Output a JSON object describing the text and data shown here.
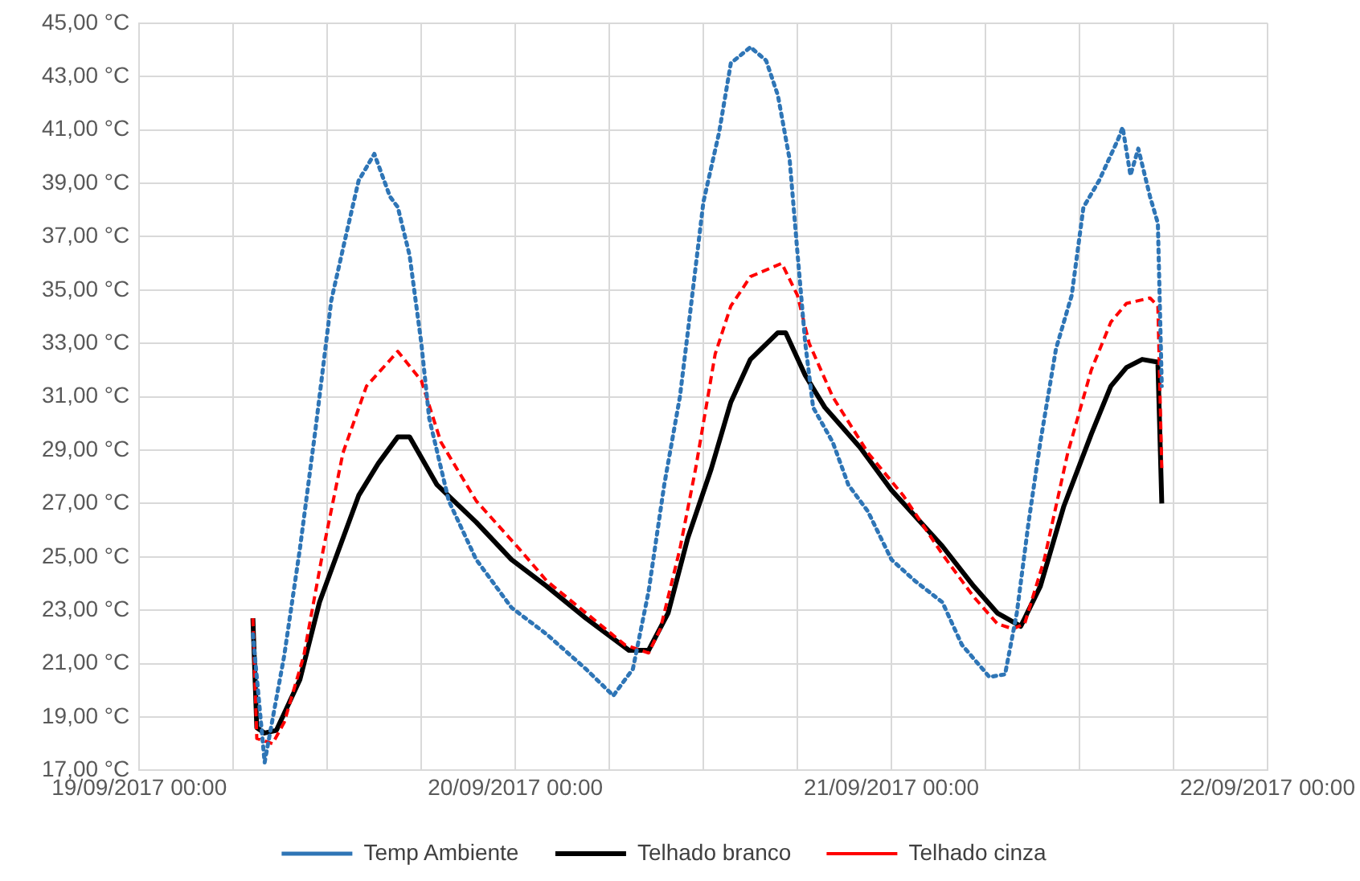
{
  "chart_data": {
    "type": "line",
    "legend": "bottom",
    "grid": true,
    "marker": "none",
    "ylim": [
      17,
      45
    ],
    "yticks": [
      {
        "value": 17,
        "label": "17,00 °C"
      },
      {
        "value": 19,
        "label": "19,00 °C"
      },
      {
        "value": 21,
        "label": "21,00 °C"
      },
      {
        "value": 23,
        "label": "23,00 °C"
      },
      {
        "value": 25,
        "label": "25,00 °C"
      },
      {
        "value": 27,
        "label": "27,00 °C"
      },
      {
        "value": 29,
        "label": "29,00 °C"
      },
      {
        "value": 31,
        "label": "31,00 °C"
      },
      {
        "value": 33,
        "label": "33,00 °C"
      },
      {
        "value": 35,
        "label": "35,00 °C"
      },
      {
        "value": 37,
        "label": "37,00 °C"
      },
      {
        "value": 39,
        "label": "39,00 °C"
      },
      {
        "value": 41,
        "label": "41,00 °C"
      },
      {
        "value": 43,
        "label": "43,00 °C"
      },
      {
        "value": 45,
        "label": "45,00 °C"
      }
    ],
    "xlim": [
      "2017-09-19T00:00",
      "2017-09-22T00:00"
    ],
    "xticks": [
      {
        "value": "2017-09-19T00:00",
        "label": "19/09/2017 00:00"
      },
      {
        "value": "2017-09-19T06:00",
        "label": null
      },
      {
        "value": "2017-09-19T12:00",
        "label": null
      },
      {
        "value": "2017-09-19T18:00",
        "label": null
      },
      {
        "value": "2017-09-20T00:00",
        "label": "20/09/2017 00:00"
      },
      {
        "value": "2017-09-20T06:00",
        "label": null
      },
      {
        "value": "2017-09-20T12:00",
        "label": null
      },
      {
        "value": "2017-09-20T18:00",
        "label": null
      },
      {
        "value": "2017-09-21T00:00",
        "label": "21/09/2017 00:00"
      },
      {
        "value": "2017-09-21T06:00",
        "label": null
      },
      {
        "value": "2017-09-21T12:00",
        "label": null
      },
      {
        "value": "2017-09-21T18:00",
        "label": null
      },
      {
        "value": "2017-09-22T00:00",
        "label": "22/09/2017 00:00"
      }
    ],
    "series": [
      {
        "name": "Temp Ambiente",
        "color": "#2e75b6",
        "line_style": "dotted",
        "x": [
          "2017-09-19T07:15",
          "2017-09-19T08:00",
          "2017-09-19T09:15",
          "2017-09-19T10:15",
          "2017-09-19T11:15",
          "2017-09-19T12:15",
          "2017-09-19T13:15",
          "2017-09-19T14:00",
          "2017-09-19T15:00",
          "2017-09-19T16:00",
          "2017-09-19T16:30",
          "2017-09-19T17:15",
          "2017-09-19T18:00",
          "2017-09-19T18:30",
          "2017-09-19T19:45",
          "2017-09-19T21:30",
          "2017-09-19T23:45",
          "2017-09-20T02:00",
          "2017-09-20T04:30",
          "2017-09-20T06:15",
          "2017-09-20T07:30",
          "2017-09-20T08:30",
          "2017-09-20T09:30",
          "2017-09-20T10:30",
          "2017-09-20T11:00",
          "2017-09-20T12:00",
          "2017-09-20T13:00",
          "2017-09-20T13:45",
          "2017-09-20T15:00",
          "2017-09-20T16:00",
          "2017-09-20T16:45",
          "2017-09-20T17:30",
          "2017-09-20T18:00",
          "2017-09-20T18:30",
          "2017-09-20T19:00",
          "2017-09-20T20:15",
          "2017-09-20T21:15",
          "2017-09-20T22:30",
          "2017-09-21T00:00",
          "2017-09-21T01:30",
          "2017-09-21T03:15",
          "2017-09-21T04:30",
          "2017-09-21T06:15",
          "2017-09-21T07:15",
          "2017-09-21T08:00",
          "2017-09-21T08:45",
          "2017-09-21T09:30",
          "2017-09-21T10:30",
          "2017-09-21T11:30",
          "2017-09-21T12:15",
          "2017-09-21T13:15",
          "2017-09-21T14:30",
          "2017-09-21T14:45",
          "2017-09-21T15:15",
          "2017-09-21T15:45",
          "2017-09-21T16:30",
          "2017-09-21T17:00",
          "2017-09-21T17:15"
        ],
        "values": [
          22.1,
          17.3,
          21.3,
          25.3,
          29.8,
          34.6,
          37.2,
          39.1,
          40.1,
          38.5,
          38.1,
          36.3,
          33.0,
          30.2,
          27.1,
          24.9,
          23.1,
          22.1,
          20.8,
          19.8,
          20.8,
          23.7,
          27.7,
          31.0,
          33.4,
          38.3,
          40.9,
          43.5,
          44.1,
          43.6,
          42.3,
          39.9,
          36.4,
          33.0,
          30.6,
          29.3,
          27.7,
          26.7,
          24.9,
          24.1,
          23.3,
          21.7,
          20.5,
          20.6,
          22.9,
          26.3,
          29.3,
          32.8,
          34.8,
          38.1,
          39.1,
          40.7,
          41.1,
          39.3,
          40.3,
          38.5,
          37.5,
          31.4
        ]
      },
      {
        "name": "Telhado branco",
        "color": "#000000",
        "line_style": "solid",
        "x": [
          "2017-09-19T07:15",
          "2017-09-19T07:30",
          "2017-09-19T08:00",
          "2017-09-19T08:45",
          "2017-09-19T10:15",
          "2017-09-19T11:30",
          "2017-09-19T12:45",
          "2017-09-19T14:00",
          "2017-09-19T15:15",
          "2017-09-19T16:30",
          "2017-09-19T17:15",
          "2017-09-19T19:00",
          "2017-09-19T21:30",
          "2017-09-19T23:45",
          "2017-09-20T02:00",
          "2017-09-20T04:30",
          "2017-09-20T07:15",
          "2017-09-20T08:30",
          "2017-09-20T09:45",
          "2017-09-20T11:00",
          "2017-09-20T12:30",
          "2017-09-20T13:45",
          "2017-09-20T15:00",
          "2017-09-20T16:45",
          "2017-09-20T17:15",
          "2017-09-20T18:30",
          "2017-09-20T19:45",
          "2017-09-20T22:00",
          "2017-09-21T00:00",
          "2017-09-21T03:15",
          "2017-09-21T05:15",
          "2017-09-21T06:45",
          "2017-09-21T08:15",
          "2017-09-21T09:30",
          "2017-09-21T11:00",
          "2017-09-21T12:45",
          "2017-09-21T14:00",
          "2017-09-21T15:00",
          "2017-09-21T16:00",
          "2017-09-21T17:00",
          "2017-09-21T17:15"
        ],
        "values": [
          22.7,
          18.6,
          18.4,
          18.5,
          20.4,
          23.3,
          25.3,
          27.3,
          28.5,
          29.5,
          29.5,
          27.7,
          26.3,
          24.9,
          23.9,
          22.7,
          21.5,
          21.5,
          22.9,
          25.7,
          28.3,
          30.8,
          32.4,
          33.4,
          33.4,
          31.8,
          30.6,
          29.1,
          27.5,
          25.4,
          23.9,
          22.9,
          22.4,
          23.9,
          26.9,
          29.6,
          31.4,
          32.1,
          32.4,
          32.3,
          27.0
        ]
      },
      {
        "name": "Telhado cinza",
        "color": "#ff0000",
        "line_style": "dashed",
        "x": [
          "2017-09-19T07:15",
          "2017-09-19T07:30",
          "2017-09-19T08:30",
          "2017-09-19T09:15",
          "2017-09-19T10:30",
          "2017-09-19T11:45",
          "2017-09-19T13:00",
          "2017-09-19T14:30",
          "2017-09-19T16:30",
          "2017-09-19T18:00",
          "2017-09-19T19:15",
          "2017-09-19T21:30",
          "2017-09-20T00:15",
          "2017-09-20T02:00",
          "2017-09-20T04:30",
          "2017-09-20T07:00",
          "2017-09-20T08:30",
          "2017-09-20T09:15",
          "2017-09-20T10:30",
          "2017-09-20T11:30",
          "2017-09-20T12:45",
          "2017-09-20T13:45",
          "2017-09-20T15:00",
          "2017-09-20T17:00",
          "2017-09-20T18:00",
          "2017-09-20T18:45",
          "2017-09-20T20:15",
          "2017-09-20T22:30",
          "2017-09-21T00:45",
          "2017-09-21T03:15",
          "2017-09-21T05:15",
          "2017-09-21T06:45",
          "2017-09-21T07:45",
          "2017-09-21T08:30",
          "2017-09-21T09:45",
          "2017-09-21T11:15",
          "2017-09-21T12:45",
          "2017-09-21T14:00",
          "2017-09-21T15:00",
          "2017-09-21T16:30",
          "2017-09-21T17:00",
          "2017-09-21T17:15"
        ],
        "values": [
          22.7,
          18.2,
          18.0,
          18.8,
          21.3,
          25.3,
          28.9,
          31.4,
          32.7,
          31.6,
          29.3,
          27.1,
          25.3,
          24.1,
          22.9,
          21.7,
          21.4,
          22.3,
          25.3,
          28.3,
          32.6,
          34.4,
          35.5,
          36.0,
          34.8,
          33.0,
          31.0,
          28.9,
          27.3,
          25.1,
          23.5,
          22.5,
          22.3,
          22.5,
          24.9,
          28.9,
          32.0,
          33.8,
          34.5,
          34.7,
          34.4,
          28.3
        ]
      }
    ]
  }
}
